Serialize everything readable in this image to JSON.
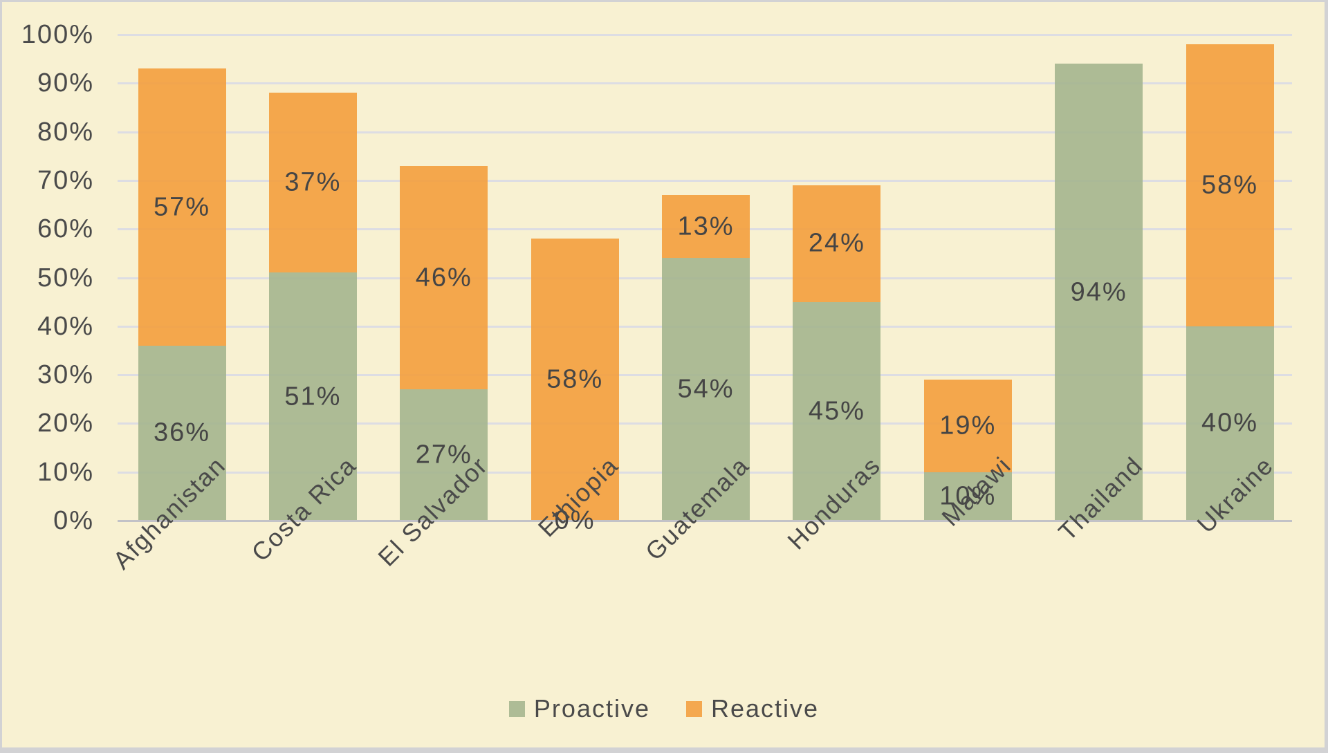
{
  "chart_data": {
    "type": "bar",
    "stacked": true,
    "title": "",
    "categories": [
      "Afghanistan",
      "Costa Rica",
      "El Salvador",
      "Ethiopia",
      "Guatemala",
      "Honduras",
      "Malawi",
      "Thailand",
      "Ukraine"
    ],
    "series": [
      {
        "name": "Proactive",
        "color": "#aebc96",
        "fill_rgba": "rgba(164,181,142,0.9)",
        "values": [
          36,
          51,
          27,
          0,
          54,
          45,
          10,
          94,
          40
        ],
        "labels": [
          "36%",
          "51%",
          "27%",
          "0%",
          "54%",
          "45%",
          "10%",
          "94%",
          "40%"
        ]
      },
      {
        "name": "Reactive",
        "color": "#f4a84f",
        "fill_rgba": "rgba(243,158,61,0.9)",
        "values": [
          57,
          37,
          46,
          58,
          13,
          24,
          19,
          0,
          58
        ],
        "labels": [
          "57%",
          "37%",
          "46%",
          "58%",
          "13%",
          "24%",
          "19%",
          "",
          "58%"
        ]
      }
    ],
    "totals": [
      93,
      88,
      73,
      58,
      67,
      69,
      29,
      94,
      98
    ],
    "y_axis": {
      "min": 0,
      "max": 100,
      "step": 10,
      "tick_labels": [
        "0%",
        "10%",
        "20%",
        "30%",
        "40%",
        "50%",
        "60%",
        "70%",
        "80%",
        "90%",
        "100%"
      ]
    },
    "x_axis": {
      "label_rotation_deg": 45
    },
    "grid": true,
    "data_labels": true,
    "legend_position": "bottom",
    "colors": {
      "background": "#f8f1d2",
      "frame_border": "#d2d2d4",
      "gridline": "#dddde3",
      "axis_line": "#c2c2c7",
      "text": "#4a4a4a"
    }
  }
}
